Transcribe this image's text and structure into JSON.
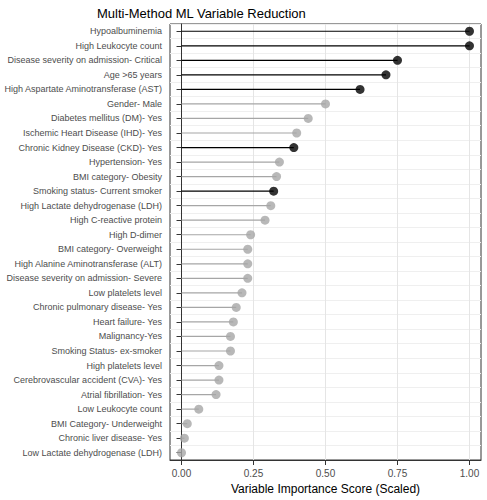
{
  "chart_data": {
    "type": "lollipop",
    "title": "Multi-Method ML Variable Reduction",
    "x_label": "Variable Importance Score (Scaled)",
    "orientation": "horizontal",
    "grid": true,
    "marker": "circle",
    "categories": [
      "Hypoalbuminemia",
      "High Leukocyte count",
      "Disease severity on admission- Critical",
      "Age >65 years",
      "High Aspartate Aminotransferase (AST)",
      "Gender- Male",
      "Diabetes mellitus (DM)- Yes",
      "Ischemic Heart Disease (IHD)- Yes",
      "Chronic Kidney Disease (CKD)- Yes",
      "Hypertension- Yes",
      "BMI category- Obesity",
      "Smoking status- Current smoker",
      "High Lactate dehydrogenase (LDH)",
      "High C-reactive protein",
      "High D-dimer",
      "BMI category- Overweight",
      "High Alanine Aminotransferase (ALT)",
      "Disease severity on admission- Severe",
      "Low platelets level",
      "Chronic pulmonary disease- Yes",
      "Heart failure- Yes",
      "Malignancy-Yes",
      "Smoking Status- ex-smoker",
      "High platelets level",
      "Cerebrovascular accident (CVA)- Yes",
      "Atrial fibrillation- Yes",
      "Low Leukocyte count",
      "BMI Category- Underweight",
      "Chronic liver disease- Yes",
      "Low Lactate dehydrogenase (LDH)"
    ],
    "values": [
      1.0,
      1.0,
      0.75,
      0.71,
      0.62,
      0.5,
      0.44,
      0.4,
      0.39,
      0.34,
      0.33,
      0.32,
      0.31,
      0.29,
      0.24,
      0.23,
      0.23,
      0.23,
      0.21,
      0.19,
      0.18,
      0.17,
      0.17,
      0.13,
      0.13,
      0.12,
      0.06,
      0.02,
      0.01,
      0.0
    ],
    "colors": [
      "#000000",
      "#000000",
      "#000000",
      "#000000",
      "#000000",
      "#a6a6a6",
      "#a6a6a6",
      "#a6a6a6",
      "#000000",
      "#a6a6a6",
      "#a6a6a6",
      "#000000",
      "#a6a6a6",
      "#a6a6a6",
      "#a6a6a6",
      "#a6a6a6",
      "#a6a6a6",
      "#a6a6a6",
      "#a6a6a6",
      "#a6a6a6",
      "#a6a6a6",
      "#a6a6a6",
      "#a6a6a6",
      "#a6a6a6",
      "#a6a6a6",
      "#a6a6a6",
      "#a6a6a6",
      "#a6a6a6",
      "#a6a6a6",
      "#a6a6a6"
    ],
    "xlim": [
      -0.04,
      1.04
    ],
    "xticks": [
      {
        "value": 0,
        "label": "0.00"
      },
      {
        "value": 0.25,
        "label": "0.25"
      },
      {
        "value": 0.5,
        "label": "0.50"
      },
      {
        "value": 0.75,
        "label": "0.75"
      },
      {
        "value": 1,
        "label": "1.00"
      }
    ]
  }
}
